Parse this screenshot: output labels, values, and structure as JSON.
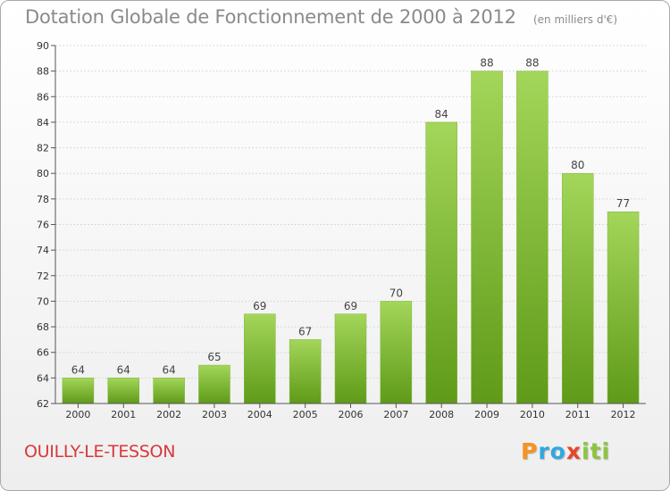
{
  "header": {
    "title": "Dotation Globale de Fonctionnement de 2000 à 2012",
    "unit": "(en milliers d'€)"
  },
  "footer": {
    "commune": "OUILLY-LE-TESSON",
    "logo_letters": [
      "P",
      "r",
      "o",
      "x",
      "i",
      "t",
      "i"
    ],
    "logo_colors": [
      "#f7931e",
      "#2fa8e0",
      "#2fa8e0",
      "#e8462a",
      "#8cc63f",
      "#8cc63f",
      "#8cc63f"
    ]
  },
  "colors": {
    "bar_light": "#a3d65a",
    "bar_dark": "#5f9a18",
    "axis": "#555555",
    "grid": "#d9d9d9"
  },
  "chart_data": {
    "type": "bar",
    "categories": [
      "2000",
      "2001",
      "2002",
      "2003",
      "2004",
      "2005",
      "2006",
      "2007",
      "2008",
      "2009",
      "2010",
      "2011",
      "2012"
    ],
    "values": [
      64,
      64,
      64,
      65,
      69,
      67,
      69,
      70,
      84,
      88,
      88,
      80,
      77
    ],
    "data_labels": [
      "64",
      "64",
      "64",
      "65",
      "69",
      "67",
      "69",
      "70",
      "84",
      "88",
      "88",
      "80",
      "77"
    ],
    "title": "Dotation Globale de Fonctionnement de 2000 à 2012",
    "xlabel": "",
    "ylabel": "",
    "ylim": [
      62,
      90
    ],
    "yticks": [
      62,
      64,
      66,
      68,
      70,
      72,
      74,
      76,
      78,
      80,
      82,
      84,
      86,
      88,
      90
    ],
    "grid": true
  }
}
